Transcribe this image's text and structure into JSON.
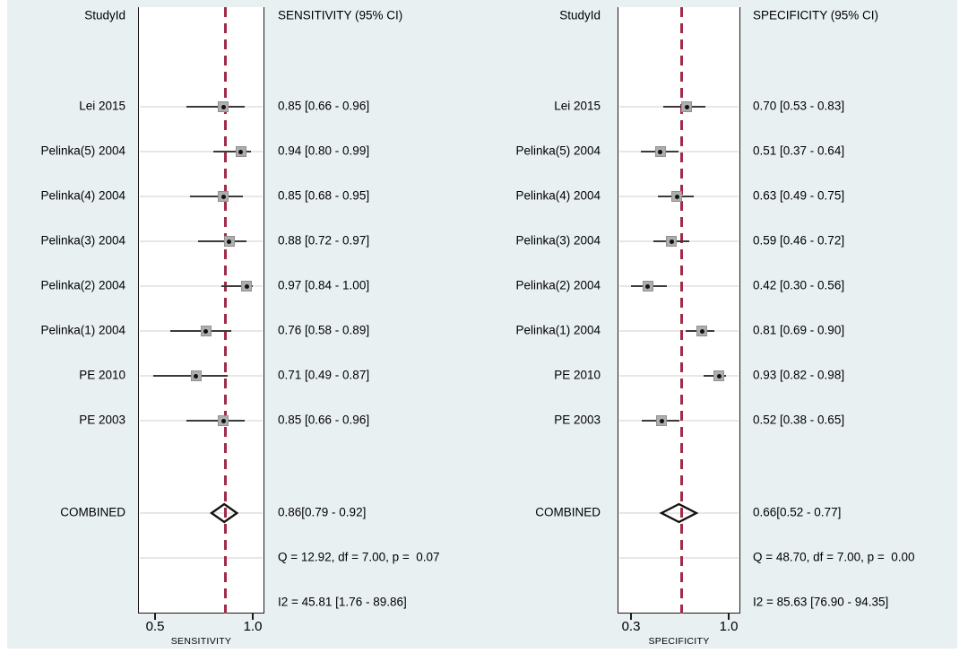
{
  "figure": {
    "description": "Paired forest plot of sensitivity and specificity with 95% confidence intervals",
    "colors": {
      "background": "#e9f0f2",
      "plot_background": "#ffffff",
      "frame": "#1a1a1a",
      "ref_line_red": "#a22c48",
      "ci_line": "#3a3a3a",
      "marker_fill": "#aeaeae",
      "marker_border": "#8f8f8f",
      "marker_dot": "#111111",
      "gridline": "#e7e7e7",
      "diamond_stroke": "#111111",
      "text": "#000000"
    }
  },
  "chart_data": [
    {
      "type": "forest",
      "panel": "sensitivity",
      "study_col_header": "StudyId",
      "value_col_header": "SENSITIVITY (95% CI)",
      "axis_label": "SENSITIVITY",
      "axis_ticks": [
        "0.5",
        "1.0"
      ],
      "axis_tick_values": [
        0.5,
        1.0
      ],
      "xlim": [
        0.41,
        1.06
      ],
      "ref_line_value": 0.86,
      "grid": true,
      "studies": [
        {
          "label": "Lei 2015",
          "estimate": 0.85,
          "ci_low": 0.66,
          "ci_high": 0.96,
          "text": "0.85 [0.66 - 0.96]"
        },
        {
          "label": "Pelinka(5) 2004",
          "estimate": 0.94,
          "ci_low": 0.8,
          "ci_high": 0.99,
          "text": "0.94 [0.80 - 0.99]"
        },
        {
          "label": "Pelinka(4) 2004",
          "estimate": 0.85,
          "ci_low": 0.68,
          "ci_high": 0.95,
          "text": "0.85 [0.68 - 0.95]"
        },
        {
          "label": "Pelinka(3) 2004",
          "estimate": 0.88,
          "ci_low": 0.72,
          "ci_high": 0.97,
          "text": "0.88 [0.72 - 0.97]"
        },
        {
          "label": "Pelinka(2) 2004",
          "estimate": 0.97,
          "ci_low": 0.84,
          "ci_high": 1.0,
          "text": "0.97 [0.84 - 1.00]"
        },
        {
          "label": "Pelinka(1) 2004",
          "estimate": 0.76,
          "ci_low": 0.58,
          "ci_high": 0.89,
          "text": "0.76 [0.58 - 0.89]"
        },
        {
          "label": "PE 2010",
          "estimate": 0.71,
          "ci_low": 0.49,
          "ci_high": 0.87,
          "text": "0.71 [0.49 - 0.87]"
        },
        {
          "label": "PE 2003",
          "estimate": 0.85,
          "ci_low": 0.66,
          "ci_high": 0.96,
          "text": "0.85 [0.66 - 0.96]"
        }
      ],
      "combined": {
        "label": "COMBINED",
        "estimate": 0.86,
        "ci_low": 0.79,
        "ci_high": 0.92,
        "text": "0.86[0.79 - 0.92]"
      },
      "stats": [
        "Q = 12.92, df = 7.00, p =  0.07",
        "I2 = 45.81 [1.76 - 89.86]"
      ]
    },
    {
      "type": "forest",
      "panel": "specificity",
      "study_col_header": "StudyId",
      "value_col_header": "SPECIFICITY (95% CI)",
      "axis_label": "SPECIFICITY",
      "axis_ticks": [
        "0.3",
        "1.0"
      ],
      "axis_tick_values": [
        0.3,
        1.0
      ],
      "xlim": [
        0.21,
        1.08
      ],
      "ref_line_value": 0.66,
      "grid": true,
      "studies": [
        {
          "label": "Lei 2015",
          "estimate": 0.7,
          "ci_low": 0.53,
          "ci_high": 0.83,
          "text": "0.70 [0.53 - 0.83]"
        },
        {
          "label": "Pelinka(5) 2004",
          "estimate": 0.51,
          "ci_low": 0.37,
          "ci_high": 0.64,
          "text": "0.51 [0.37 - 0.64]"
        },
        {
          "label": "Pelinka(4) 2004",
          "estimate": 0.63,
          "ci_low": 0.49,
          "ci_high": 0.75,
          "text": "0.63 [0.49 - 0.75]"
        },
        {
          "label": "Pelinka(3) 2004",
          "estimate": 0.59,
          "ci_low": 0.46,
          "ci_high": 0.72,
          "text": "0.59 [0.46 - 0.72]"
        },
        {
          "label": "Pelinka(2) 2004",
          "estimate": 0.42,
          "ci_low": 0.3,
          "ci_high": 0.56,
          "text": "0.42 [0.30 - 0.56]"
        },
        {
          "label": "Pelinka(1) 2004",
          "estimate": 0.81,
          "ci_low": 0.69,
          "ci_high": 0.9,
          "text": "0.81 [0.69 - 0.90]"
        },
        {
          "label": "PE 2010",
          "estimate": 0.93,
          "ci_low": 0.82,
          "ci_high": 0.98,
          "text": "0.93 [0.82 - 0.98]"
        },
        {
          "label": "PE 2003",
          "estimate": 0.52,
          "ci_low": 0.38,
          "ci_high": 0.65,
          "text": "0.52 [0.38 - 0.65]"
        }
      ],
      "combined": {
        "label": "COMBINED",
        "estimate": 0.66,
        "ci_low": 0.52,
        "ci_high": 0.77,
        "text": "0.66[0.52 - 0.77]"
      },
      "stats": [
        "Q = 48.70, df = 7.00, p =  0.00",
        "I2 = 85.63 [76.90 - 94.35]"
      ]
    }
  ]
}
